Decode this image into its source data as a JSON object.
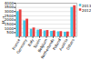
{
  "chart_data": {
    "type": "bar",
    "categories": [
      "France",
      "Germany",
      "Italy",
      "Spain",
      "Belgium",
      "Netherlands",
      "Poland",
      "Austria",
      "Others"
    ],
    "series": [
      {
        "name": "2013",
        "color": "#40c8e8",
        "values": [
          3000,
          1900,
          900,
          800,
          700,
          650,
          600,
          550,
          3500
        ]
      },
      {
        "name": "2012",
        "color": "#e84040",
        "values": [
          3200,
          2100,
          1050,
          850,
          750,
          700,
          620,
          580,
          3700
        ]
      }
    ],
    "ylabel": "kt",
    "ylim": [
      0,
      4000
    ],
    "yticks": [
      500,
      1000,
      1500,
      2000,
      2500,
      3000,
      3500,
      4000
    ],
    "grid": true,
    "legend": "upper right"
  }
}
